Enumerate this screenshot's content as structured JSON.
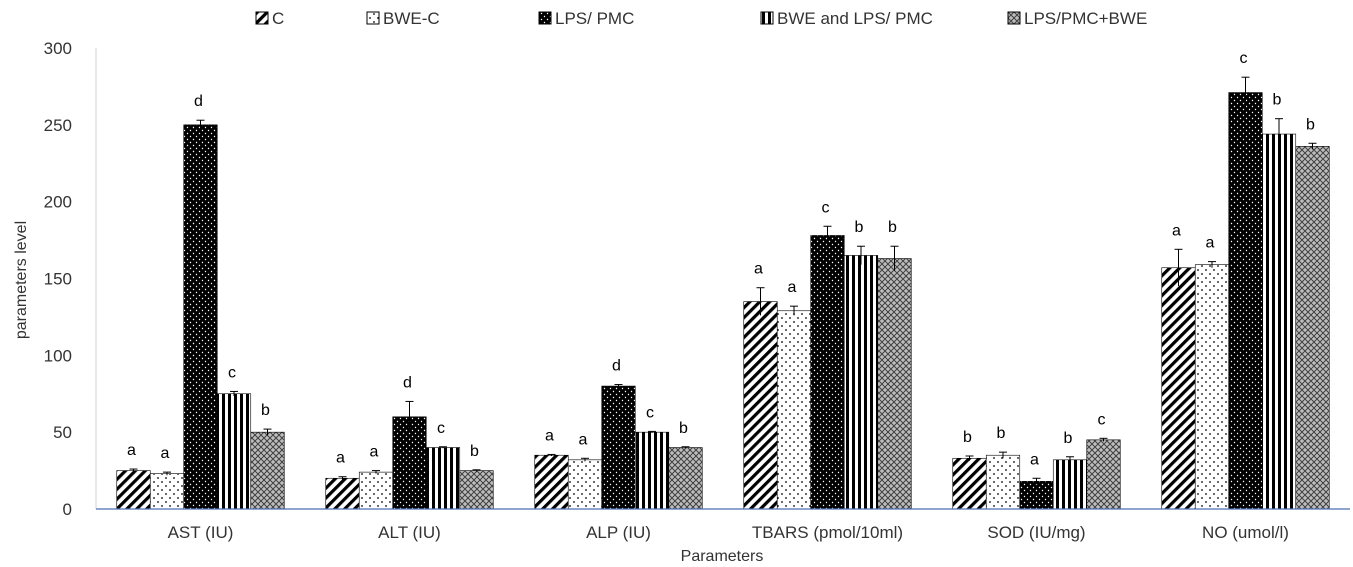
{
  "chart_data": {
    "type": "bar",
    "title": "",
    "xlabel": "Parameters",
    "ylabel": "parameters level",
    "ylim": [
      0,
      300
    ],
    "yticks": [
      0,
      50,
      100,
      150,
      200,
      250,
      300
    ],
    "grid": false,
    "legend_position": "top",
    "categories": [
      "AST (IU)",
      "ALT (IU)",
      "ALP (IU)",
      "TBARS (pmol/10ml)",
      "SOD (IU/mg)",
      "NO (umol/l)"
    ],
    "series": [
      {
        "name": "C",
        "pattern": "diagonal-stripes",
        "values": [
          25,
          20,
          35,
          135,
          33,
          157
        ],
        "errors": [
          1,
          1,
          0.5,
          9,
          1.5,
          12
        ],
        "labels": [
          "a",
          "a",
          "a",
          "a",
          "b",
          "a"
        ]
      },
      {
        "name": "BWE-C",
        "pattern": "sparse-dots",
        "values": [
          23,
          24,
          32,
          129,
          35,
          159
        ],
        "errors": [
          1,
          1,
          1,
          3,
          2,
          2
        ],
        "labels": [
          "a",
          "a",
          "a",
          "a",
          "b",
          "a"
        ]
      },
      {
        "name": "LPS/ PMC",
        "pattern": "black-dotted",
        "values": [
          250,
          60,
          80,
          178,
          18,
          271
        ],
        "errors": [
          3,
          10,
          1,
          6,
          2,
          10
        ],
        "labels": [
          "d",
          "d",
          "d",
          "c",
          "a",
          "c"
        ]
      },
      {
        "name": "BWE and LPS/ PMC",
        "pattern": "vertical-stripes",
        "values": [
          75,
          40,
          50,
          165,
          32,
          244
        ],
        "errors": [
          1.5,
          0.5,
          0.5,
          6,
          2,
          10
        ],
        "labels": [
          "c",
          "c",
          "c",
          "b",
          "b",
          "b"
        ]
      },
      {
        "name": "LPS/PMC+BWE",
        "pattern": "crosshatch",
        "values": [
          50,
          25,
          40,
          163,
          45,
          236
        ],
        "errors": [
          2,
          0.5,
          0.5,
          8,
          1,
          2
        ],
        "labels": [
          "b",
          "b",
          "b",
          "b",
          "c",
          "b"
        ]
      }
    ]
  }
}
